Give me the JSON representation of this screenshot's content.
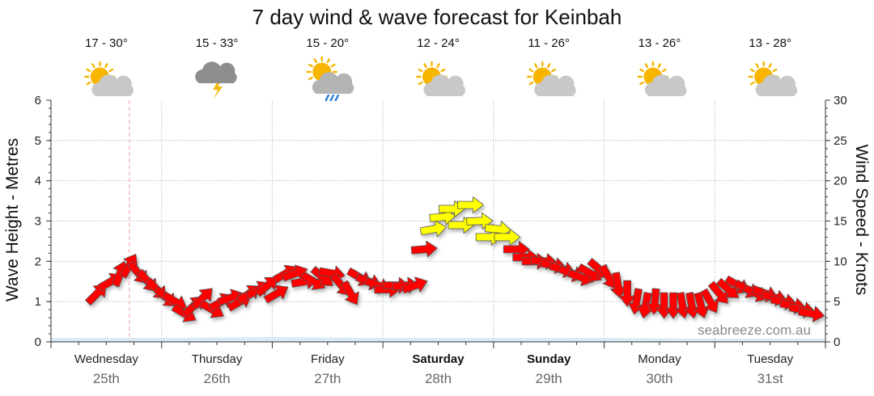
{
  "chart_data": {
    "type": "line",
    "title": "7 day wind & wave forecast for Keinbah",
    "ylabel_left": "Wave Height - Metres",
    "ylabel_right": "Wind Speed - Knots",
    "ylim_left": [
      0,
      6
    ],
    "ylim_right": [
      0,
      30
    ],
    "yticks_left": [
      "0",
      "1",
      "2",
      "3",
      "4",
      "5",
      "6"
    ],
    "yticks_right": [
      "0",
      "5",
      "10",
      "15",
      "20",
      "25",
      "30"
    ],
    "xlim_hours": [
      0,
      168
    ],
    "days": [
      {
        "name": "Wednesday",
        "date": "25th",
        "temp": "17 - 30°",
        "weather": "partly-cloudy-icon",
        "bold": false
      },
      {
        "name": "Thursday",
        "date": "26th",
        "temp": "15 - 33°",
        "weather": "storm-icon",
        "bold": false
      },
      {
        "name": "Friday",
        "date": "27th",
        "temp": "15 - 20°",
        "weather": "sun-cloud-rain-icon",
        "bold": false
      },
      {
        "name": "Saturday",
        "date": "28th",
        "temp": "12 - 24°",
        "weather": "partly-cloudy-icon",
        "bold": true
      },
      {
        "name": "Sunday",
        "date": "29th",
        "temp": "11 - 26°",
        "weather": "partly-cloudy-icon",
        "bold": true
      },
      {
        "name": "Monday",
        "date": "30th",
        "temp": "13 - 26°",
        "weather": "partly-cloudy-icon",
        "bold": false
      },
      {
        "name": "Tuesday",
        "date": "31st",
        "temp": "13 - 28°",
        "weather": "partly-cloudy-icon",
        "bold": false
      }
    ],
    "current_time_hours": 17,
    "wind_arrows": [
      {
        "h": 10,
        "knots": 6,
        "dir": 225
      },
      {
        "h": 13,
        "knots": 7.5,
        "dir": 240
      },
      {
        "h": 15,
        "knots": 8.5,
        "dir": 200
      },
      {
        "h": 17,
        "knots": 9.5,
        "dir": 210
      },
      {
        "h": 19,
        "knots": 8.5,
        "dir": 320
      },
      {
        "h": 21,
        "knots": 7.5,
        "dir": 320
      },
      {
        "h": 23,
        "knots": 6.5,
        "dir": 315
      },
      {
        "h": 25,
        "knots": 5.5,
        "dir": 310
      },
      {
        "h": 27,
        "knots": 5,
        "dir": 300
      },
      {
        "h": 29,
        "knots": 3.5,
        "dir": 300
      },
      {
        "h": 31,
        "knots": 4.5,
        "dir": 225
      },
      {
        "h": 33,
        "knots": 5.5,
        "dir": 225
      },
      {
        "h": 35,
        "knots": 4,
        "dir": 300
      },
      {
        "h": 37,
        "knots": 5,
        "dir": 240
      },
      {
        "h": 39,
        "knots": 5.5,
        "dir": 250
      },
      {
        "h": 41,
        "knots": 5,
        "dir": 240
      },
      {
        "h": 43,
        "knots": 6,
        "dir": 235
      },
      {
        "h": 45,
        "knots": 6.5,
        "dir": 240
      },
      {
        "h": 47,
        "knots": 7,
        "dir": 230
      },
      {
        "h": 49,
        "knots": 6,
        "dir": 240
      },
      {
        "h": 51,
        "knots": 8.5,
        "dir": 240
      },
      {
        "h": 53,
        "knots": 8.5,
        "dir": 250
      },
      {
        "h": 55,
        "knots": 7.5,
        "dir": 260
      },
      {
        "h": 57,
        "knots": 7.5,
        "dir": 300
      },
      {
        "h": 59,
        "knots": 8,
        "dir": 310
      },
      {
        "h": 61,
        "knots": 8.5,
        "dir": 280
      },
      {
        "h": 63,
        "knots": 7,
        "dir": 320
      },
      {
        "h": 65,
        "knots": 6,
        "dir": 330
      },
      {
        "h": 67,
        "knots": 8,
        "dir": 300
      },
      {
        "h": 69,
        "knots": 7.5,
        "dir": 290
      },
      {
        "h": 71,
        "knots": 7,
        "dir": 290
      },
      {
        "h": 73,
        "knots": 6.5,
        "dir": 270
      },
      {
        "h": 75,
        "knots": 7,
        "dir": 270
      },
      {
        "h": 77,
        "knots": 7,
        "dir": 265
      },
      {
        "h": 79,
        "knots": 7,
        "dir": 250
      },
      {
        "h": 81,
        "knots": 11.5,
        "dir": 265
      },
      {
        "h": 83,
        "knots": 14,
        "dir": 260
      },
      {
        "h": 85,
        "knots": 15.5,
        "dir": 265
      },
      {
        "h": 87,
        "knots": 16.5,
        "dir": 270
      },
      {
        "h": 89,
        "knots": 14.5,
        "dir": 270
      },
      {
        "h": 91,
        "knots": 17,
        "dir": 270
      },
      {
        "h": 93,
        "knots": 15,
        "dir": 268
      },
      {
        "h": 95,
        "knots": 13,
        "dir": 270
      },
      {
        "h": 97,
        "knots": 14,
        "dir": 275
      },
      {
        "h": 99,
        "knots": 13,
        "dir": 270
      },
      {
        "h": 101,
        "knots": 11.5,
        "dir": 270
      },
      {
        "h": 103,
        "knots": 10.5,
        "dir": 270
      },
      {
        "h": 105,
        "knots": 10,
        "dir": 270
      },
      {
        "h": 107,
        "knots": 10,
        "dir": 275
      },
      {
        "h": 109,
        "knots": 9.5,
        "dir": 280
      },
      {
        "h": 111,
        "knots": 9,
        "dir": 285
      },
      {
        "h": 113,
        "knots": 8.5,
        "dir": 290
      },
      {
        "h": 115,
        "knots": 8,
        "dir": 290
      },
      {
        "h": 117,
        "knots": 8.5,
        "dir": 300
      },
      {
        "h": 119,
        "knots": 9,
        "dir": 310
      },
      {
        "h": 121,
        "knots": 8,
        "dir": 330
      },
      {
        "h": 123,
        "knots": 7,
        "dir": 350
      },
      {
        "h": 125,
        "knots": 6,
        "dir": 0
      },
      {
        "h": 127,
        "knots": 5,
        "dir": 10
      },
      {
        "h": 129,
        "knots": 4.5,
        "dir": 10
      },
      {
        "h": 131,
        "knots": 5,
        "dir": 5
      },
      {
        "h": 133,
        "knots": 4.5,
        "dir": 0
      },
      {
        "h": 135,
        "knots": 4.5,
        "dir": 0
      },
      {
        "h": 137,
        "knots": 4.5,
        "dir": 350
      },
      {
        "h": 139,
        "knots": 4.5,
        "dir": 350
      },
      {
        "h": 141,
        "knots": 4.5,
        "dir": 345
      },
      {
        "h": 143,
        "knots": 5,
        "dir": 330
      },
      {
        "h": 145,
        "knots": 6,
        "dir": 320
      },
      {
        "h": 147,
        "knots": 6.5,
        "dir": 310
      },
      {
        "h": 149,
        "knots": 7,
        "dir": 300
      },
      {
        "h": 151,
        "knots": 6.5,
        "dir": 300
      },
      {
        "h": 153,
        "knots": 6,
        "dir": 295
      },
      {
        "h": 155,
        "knots": 6,
        "dir": 290
      },
      {
        "h": 157,
        "knots": 5.5,
        "dir": 285
      },
      {
        "h": 159,
        "knots": 5,
        "dir": 280
      },
      {
        "h": 161,
        "knots": 4.5,
        "dir": 280
      },
      {
        "h": 163,
        "knots": 4,
        "dir": 280
      },
      {
        "h": 165,
        "knots": 3.5,
        "dir": 280
      }
    ],
    "wave_height": [
      {
        "h": 0,
        "m": 0.1
      },
      {
        "h": 24,
        "m": 0.1
      },
      {
        "h": 48,
        "m": 0.12
      },
      {
        "h": 72,
        "m": 0.1
      },
      {
        "h": 96,
        "m": 0.1
      },
      {
        "h": 120,
        "m": 0.1
      },
      {
        "h": 144,
        "m": 0.08
      },
      {
        "h": 168,
        "m": 0.08
      }
    ],
    "watermark": "seabreeze.com.au",
    "colors": {
      "wind_strong": "#ff0000",
      "wind_light": "#ffff00",
      "outline": "#555555",
      "grid": "#aaaaaa",
      "marker": "#f4a0a0",
      "wave": "#cce3f2"
    }
  }
}
